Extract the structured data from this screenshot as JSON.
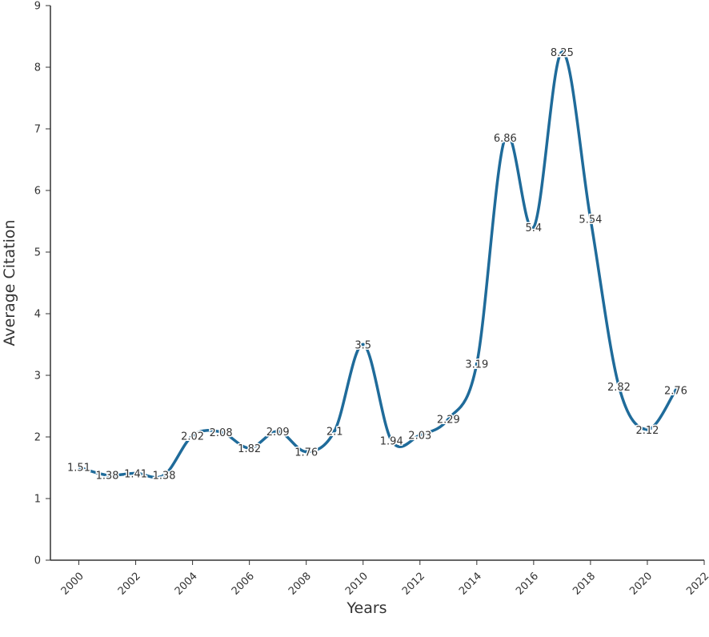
{
  "chart_data": {
    "type": "line",
    "xlabel": "Years",
    "ylabel": "Average Citation",
    "xlim": [
      1999,
      2022
    ],
    "ylim": [
      0,
      9
    ],
    "x_ticks": [
      "2000",
      "2002",
      "2004",
      "2006",
      "2008",
      "2010",
      "2012",
      "2014",
      "2016",
      "2018",
      "2020",
      "2022"
    ],
    "y_ticks": [
      "0",
      "1",
      "2",
      "3",
      "4",
      "5",
      "6",
      "7",
      "8",
      "9"
    ],
    "grid": false,
    "series": [
      {
        "x": [
          2000,
          2001,
          2002,
          2003,
          2004,
          2005,
          2006,
          2007,
          2008,
          2009,
          2010,
          2011,
          2012,
          2013,
          2014,
          2015,
          2016,
          2017,
          2018,
          2019,
          2020,
          2021
        ],
        "values": [
          1.51,
          1.38,
          1.41,
          1.38,
          2.02,
          2.08,
          1.82,
          2.09,
          1.76,
          2.1,
          3.5,
          1.94,
          2.03,
          2.29,
          3.19,
          6.86,
          5.4,
          8.25,
          5.54,
          2.82,
          2.12,
          2.76
        ],
        "labels": [
          "1.51",
          "1.38",
          "1.41",
          "1.38",
          "2.02",
          "2.08",
          "1.82",
          "2.09",
          "1.76",
          "2.1",
          "3.5",
          "1.94",
          "2.03",
          "2.29",
          "3.19",
          "6.86",
          "5.4",
          "8.25",
          "5.54",
          "2.82",
          "2.12",
          "2.76"
        ],
        "color": "#1f6b9a"
      }
    ]
  }
}
